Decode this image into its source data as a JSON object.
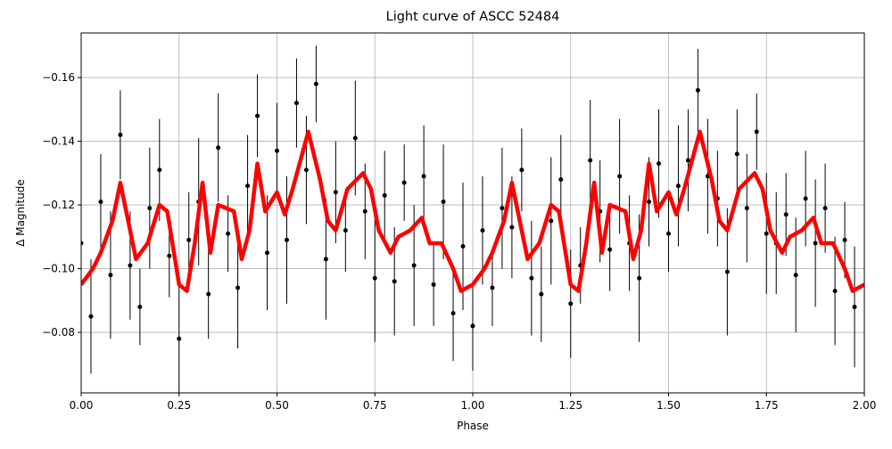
{
  "chart_data": {
    "type": "errorbar-line",
    "title": "Light curve of ASCC 52484",
    "x_label": "Phase",
    "y_label": "Δ Magnitude",
    "grid": true,
    "xlim": [
      0,
      2
    ],
    "ylim": [
      -0.061,
      -0.174
    ],
    "xticks": [
      {
        "value": 0,
        "label": "0.00"
      },
      {
        "value": 0.25,
        "label": "0.25"
      },
      {
        "value": 0.5,
        "label": "0.50"
      },
      {
        "value": 0.75,
        "label": "0.75"
      },
      {
        "value": 1,
        "label": "1.00"
      },
      {
        "value": 1.25,
        "label": "1.25"
      },
      {
        "value": 1.5,
        "label": "1.50"
      },
      {
        "value": 1.75,
        "label": "1.75"
      },
      {
        "value": 2,
        "label": "2.00"
      }
    ],
    "yticks": [
      {
        "value": -0.16,
        "label": "−0.16"
      },
      {
        "value": -0.14,
        "label": "−0.14"
      },
      {
        "value": -0.12,
        "label": "−0.12"
      },
      {
        "value": -0.1,
        "label": "−0.10"
      },
      {
        "value": -0.08,
        "label": "−0.08"
      }
    ],
    "points": {
      "color": "#000000",
      "x": [
        0,
        0.025,
        0.05,
        0.075,
        0.1,
        0.125,
        0.15,
        0.175,
        0.2,
        0.225,
        0.25,
        0.275,
        0.3,
        0.325,
        0.35,
        0.375,
        0.4,
        0.425,
        0.45,
        0.475,
        0.5,
        0.525,
        0.55,
        0.575,
        0.6,
        0.625,
        0.65,
        0.675,
        0.7,
        0.725,
        0.75,
        0.775,
        0.8,
        0.825,
        0.85,
        0.875,
        0.9,
        0.925,
        0.95,
        0.975,
        1,
        1.025,
        1.05,
        1.075,
        1.1,
        1.125,
        1.15,
        1.175,
        1.2,
        1.225,
        1.25,
        1.275,
        1.3,
        1.325,
        1.35,
        1.375,
        1.4,
        1.425,
        1.45,
        1.475,
        1.5,
        1.525,
        1.55,
        1.575,
        1.6,
        1.625,
        1.65,
        1.675,
        1.7,
        1.725,
        1.75,
        1.775,
        1.8,
        1.825,
        1.85,
        1.875,
        1.9,
        1.925,
        1.95,
        1.975
      ],
      "values": [
        -0.108,
        -0.085,
        -0.121,
        -0.098,
        -0.142,
        -0.101,
        -0.088,
        -0.119,
        -0.131,
        -0.104,
        -0.078,
        -0.109,
        -0.121,
        -0.092,
        -0.138,
        -0.111,
        -0.094,
        -0.126,
        -0.148,
        -0.105,
        -0.137,
        -0.109,
        -0.152,
        -0.131,
        -0.158,
        -0.103,
        -0.124,
        -0.112,
        -0.141,
        -0.118,
        -0.097,
        -0.123,
        -0.096,
        -0.127,
        -0.101,
        -0.129,
        -0.095,
        -0.121,
        -0.086,
        -0.107,
        -0.082,
        -0.112,
        -0.094,
        -0.119,
        -0.113,
        -0.131,
        -0.097,
        -0.092,
        -0.115,
        -0.128,
        -0.089,
        -0.101,
        -0.134,
        -0.118,
        -0.106,
        -0.129,
        -0.108,
        -0.097,
        -0.121,
        -0.133,
        -0.111,
        -0.126,
        -0.134,
        -0.156,
        -0.129,
        -0.122,
        -0.099,
        -0.136,
        -0.119,
        -0.143,
        -0.111,
        -0.108,
        -0.117,
        -0.098,
        -0.122,
        -0.108,
        -0.119,
        -0.093,
        -0.109,
        -0.088
      ],
      "errors": [
        0.012,
        0.018,
        0.015,
        0.02,
        0.014,
        0.017,
        0.012,
        0.019,
        0.016,
        0.013,
        0.018,
        0.015,
        0.02,
        0.014,
        0.017,
        0.012,
        0.019,
        0.016,
        0.013,
        0.018,
        0.015,
        0.02,
        0.014,
        0.017,
        0.012,
        0.019,
        0.016,
        0.013,
        0.018,
        0.015,
        0.02,
        0.014,
        0.017,
        0.012,
        0.019,
        0.016,
        0.013,
        0.018,
        0.015,
        0.02,
        0.014,
        0.017,
        0.012,
        0.019,
        0.016,
        0.013,
        0.018,
        0.015,
        0.02,
        0.014,
        0.017,
        0.012,
        0.019,
        0.016,
        0.013,
        0.018,
        0.015,
        0.02,
        0.014,
        0.017,
        0.012,
        0.019,
        0.016,
        0.013,
        0.018,
        0.015,
        0.02,
        0.014,
        0.017,
        0.012,
        0.019,
        0.016,
        0.013,
        0.018,
        0.015,
        0.02,
        0.014,
        0.017,
        0.012,
        0.019
      ]
    },
    "curve": {
      "color": "#ff0000",
      "x": [
        0,
        0.03,
        0.05,
        0.08,
        0.1,
        0.12,
        0.14,
        0.17,
        0.2,
        0.22,
        0.25,
        0.27,
        0.29,
        0.31,
        0.33,
        0.35,
        0.37,
        0.39,
        0.41,
        0.43,
        0.45,
        0.47,
        0.5,
        0.52,
        0.54,
        0.58,
        0.61,
        0.63,
        0.65,
        0.68,
        0.72,
        0.74,
        0.76,
        0.79,
        0.81,
        0.84,
        0.87,
        0.89,
        0.92,
        0.95,
        0.97,
        1,
        1.03,
        1.05,
        1.08,
        1.1,
        1.12,
        1.14,
        1.17,
        1.2,
        1.22,
        1.25,
        1.27,
        1.29,
        1.31,
        1.33,
        1.35,
        1.37,
        1.39,
        1.41,
        1.43,
        1.45,
        1.47,
        1.5,
        1.52,
        1.54,
        1.58,
        1.61,
        1.63,
        1.65,
        1.68,
        1.72,
        1.74,
        1.76,
        1.79,
        1.81,
        1.84,
        1.87,
        1.89,
        1.92,
        1.95,
        1.97,
        2
      ],
      "values": [
        -0.095,
        -0.1,
        -0.105,
        -0.115,
        -0.127,
        -0.115,
        -0.103,
        -0.108,
        -0.12,
        -0.118,
        -0.095,
        -0.093,
        -0.108,
        -0.127,
        -0.105,
        -0.12,
        -0.119,
        -0.118,
        -0.103,
        -0.112,
        -0.133,
        -0.118,
        -0.124,
        -0.117,
        -0.125,
        -0.143,
        -0.128,
        -0.115,
        -0.112,
        -0.125,
        -0.13,
        -0.125,
        -0.112,
        -0.105,
        -0.11,
        -0.112,
        -0.116,
        -0.108,
        -0.108,
        -0.1,
        -0.093,
        -0.095,
        -0.1,
        -0.105,
        -0.115,
        -0.127,
        -0.115,
        -0.103,
        -0.108,
        -0.12,
        -0.118,
        -0.095,
        -0.093,
        -0.108,
        -0.127,
        -0.105,
        -0.12,
        -0.119,
        -0.118,
        -0.103,
        -0.112,
        -0.133,
        -0.118,
        -0.124,
        -0.117,
        -0.125,
        -0.143,
        -0.128,
        -0.115,
        -0.112,
        -0.125,
        -0.13,
        -0.125,
        -0.112,
        -0.105,
        -0.11,
        -0.112,
        -0.116,
        -0.108,
        -0.108,
        -0.1,
        -0.093,
        -0.095
      ]
    }
  }
}
